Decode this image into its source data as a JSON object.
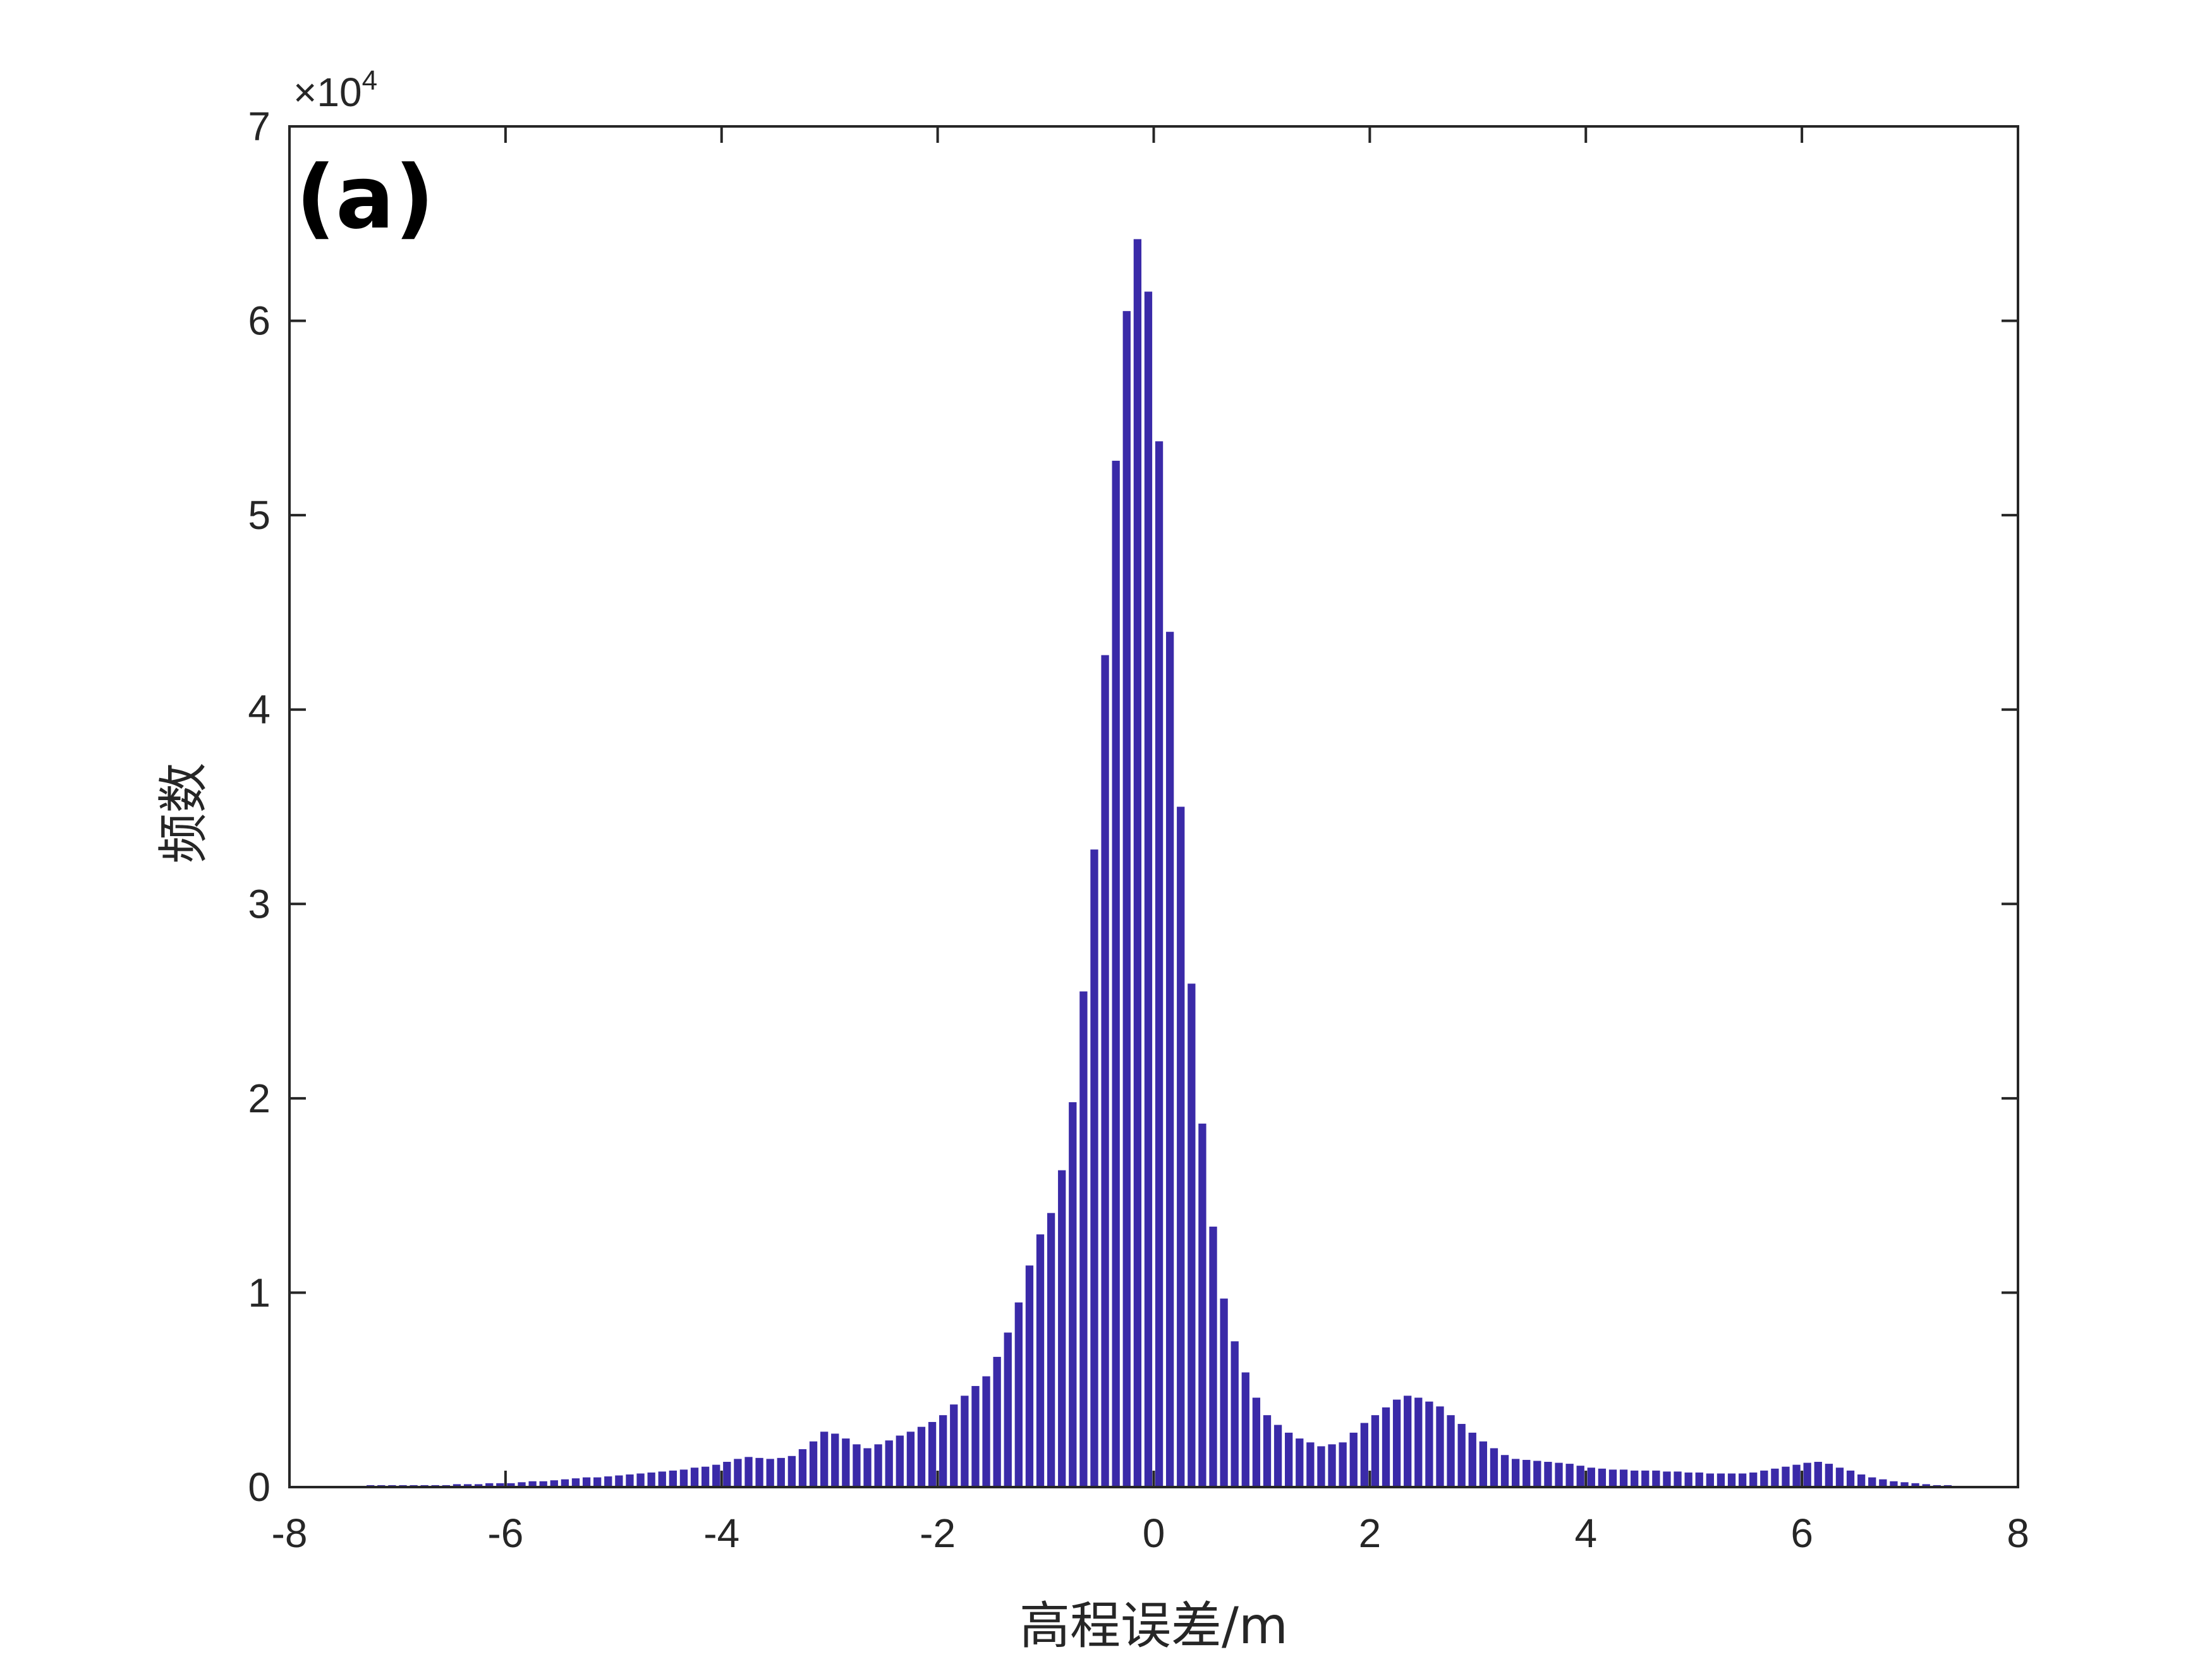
{
  "chart_data": {
    "type": "bar",
    "panel_label": "(a)",
    "xlabel": "高程误差/m",
    "ylabel": "频数",
    "y_scale_label": "×10",
    "y_scale_exponent": "4",
    "xlim": [
      -8,
      8
    ],
    "ylim": [
      0,
      70000
    ],
    "xticks": [
      -8,
      -6,
      -4,
      -2,
      0,
      2,
      4,
      6,
      8
    ],
    "yticks": [
      0,
      1,
      2,
      3,
      4,
      5,
      6,
      7
    ],
    "bar_width": 0.1,
    "bar_color": "#3a2aa8",
    "bins": {
      "x_start": -7.25,
      "x_step": 0.1,
      "values": [
        100,
        100,
        100,
        100,
        100,
        100,
        100,
        100,
        150,
        150,
        150,
        200,
        200,
        200,
        250,
        300,
        300,
        350,
        400,
        450,
        500,
        500,
        550,
        600,
        650,
        700,
        750,
        800,
        850,
        900,
        1000,
        1050,
        1150,
        1300,
        1450,
        1550,
        1500,
        1450,
        1500,
        1600,
        1950,
        2350,
        2850,
        2750,
        2500,
        2200,
        2000,
        2200,
        2400,
        2650,
        2850,
        3100,
        3350,
        3700,
        4250,
        4700,
        5200,
        5700,
        6700,
        7950,
        9500,
        11400,
        13000,
        14100,
        16300,
        19800,
        25500,
        32800,
        42800,
        52800,
        60500,
        64200,
        61500,
        53800,
        44000,
        35000,
        25900,
        18700,
        13400,
        9700,
        7500,
        5900,
        4600,
        3700,
        3200,
        2800,
        2500,
        2300,
        2100,
        2200,
        2300,
        2800,
        3300,
        3700,
        4100,
        4500,
        4700,
        4600,
        4400,
        4150,
        3700,
        3250,
        2800,
        2350,
        2000,
        1650,
        1450,
        1400,
        1350,
        1300,
        1250,
        1200,
        1100,
        1000,
        950,
        900,
        900,
        850,
        850,
        850,
        800,
        800,
        750,
        750,
        700,
        700,
        700,
        700,
        750,
        850,
        950,
        1050,
        1150,
        1250,
        1300,
        1200,
        1000,
        850,
        650,
        500,
        400,
        300,
        250,
        200,
        150,
        100,
        100
      ]
    },
    "grid": false,
    "legend": "none"
  }
}
